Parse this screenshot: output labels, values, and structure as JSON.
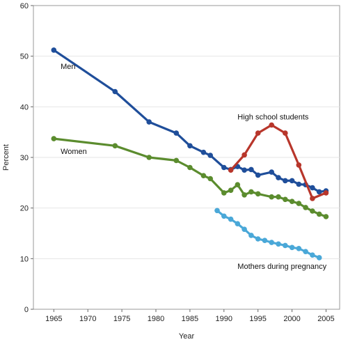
{
  "chart_data": {
    "type": "line",
    "xlabel": "Year",
    "ylabel": "Percent",
    "xlim": [
      1962,
      2007
    ],
    "ylim": [
      0,
      60
    ],
    "x_ticks": [
      1965,
      1970,
      1975,
      1980,
      1985,
      1990,
      1995,
      2000,
      2005
    ],
    "y_ticks": [
      0,
      10,
      20,
      30,
      40,
      50,
      60
    ],
    "grid": "horizontal",
    "series": [
      {
        "name": "Men",
        "color": "#1f4e9a",
        "points": [
          [
            1965,
            51.2
          ],
          [
            1974,
            43.0
          ],
          [
            1979,
            37.0
          ],
          [
            1983,
            34.8
          ],
          [
            1985,
            32.3
          ],
          [
            1987,
            31.0
          ],
          [
            1988,
            30.4
          ],
          [
            1990,
            28.0
          ],
          [
            1991,
            27.6
          ],
          [
            1992,
            28.2
          ],
          [
            1993,
            27.5
          ],
          [
            1994,
            27.6
          ],
          [
            1995,
            26.5
          ],
          [
            1997,
            27.1
          ],
          [
            1998,
            26.0
          ],
          [
            1999,
            25.4
          ],
          [
            2000,
            25.4
          ],
          [
            2001,
            24.7
          ],
          [
            2002,
            24.6
          ],
          [
            2003,
            24.0
          ],
          [
            2004,
            23.2
          ],
          [
            2005,
            23.4
          ]
        ]
      },
      {
        "name": "Women",
        "color": "#5b8c2e",
        "points": [
          [
            1965,
            33.7
          ],
          [
            1974,
            32.3
          ],
          [
            1979,
            30.0
          ],
          [
            1983,
            29.4
          ],
          [
            1985,
            28.0
          ],
          [
            1987,
            26.4
          ],
          [
            1988,
            25.8
          ],
          [
            1990,
            23.0
          ],
          [
            1991,
            23.5
          ],
          [
            1992,
            24.6
          ],
          [
            1993,
            22.6
          ],
          [
            1994,
            23.2
          ],
          [
            1995,
            22.8
          ],
          [
            1997,
            22.2
          ],
          [
            1998,
            22.2
          ],
          [
            1999,
            21.7
          ],
          [
            2000,
            21.3
          ],
          [
            2001,
            20.9
          ],
          [
            2002,
            20.1
          ],
          [
            2003,
            19.4
          ],
          [
            2004,
            18.8
          ],
          [
            2005,
            18.3
          ]
        ]
      },
      {
        "name": "High school students",
        "color": "#b8362b",
        "points": [
          [
            1991,
            27.5
          ],
          [
            1993,
            30.5
          ],
          [
            1995,
            34.8
          ],
          [
            1997,
            36.4
          ],
          [
            1999,
            34.8
          ],
          [
            2001,
            28.5
          ],
          [
            2003,
            21.9
          ],
          [
            2005,
            23.0
          ]
        ]
      },
      {
        "name": "Mothers during pregnancy",
        "color": "#4aa8d8",
        "points": [
          [
            1989,
            19.5
          ],
          [
            1990,
            18.4
          ],
          [
            1991,
            17.8
          ],
          [
            1992,
            16.9
          ],
          [
            1993,
            15.8
          ],
          [
            1994,
            14.6
          ],
          [
            1995,
            13.9
          ],
          [
            1996,
            13.6
          ],
          [
            1997,
            13.2
          ],
          [
            1998,
            12.9
          ],
          [
            1999,
            12.6
          ],
          [
            2000,
            12.2
          ],
          [
            2001,
            12.0
          ],
          [
            2002,
            11.4
          ],
          [
            2003,
            10.7
          ],
          [
            2004,
            10.2
          ]
        ]
      }
    ],
    "annotations": [
      {
        "text": "Men",
        "series": 0,
        "anchor": [
          1966,
          47.5
        ],
        "anchor_type": "start"
      },
      {
        "text": "Women",
        "series": 1,
        "anchor": [
          1966,
          30.7
        ],
        "anchor_type": "start"
      },
      {
        "text": "High school students",
        "series": 2,
        "anchor": [
          1992,
          37.5
        ],
        "anchor_type": "start"
      },
      {
        "text": "Mothers during pregnancy",
        "series": 3,
        "anchor": [
          1992,
          8.0
        ],
        "anchor_type": "start"
      }
    ]
  }
}
